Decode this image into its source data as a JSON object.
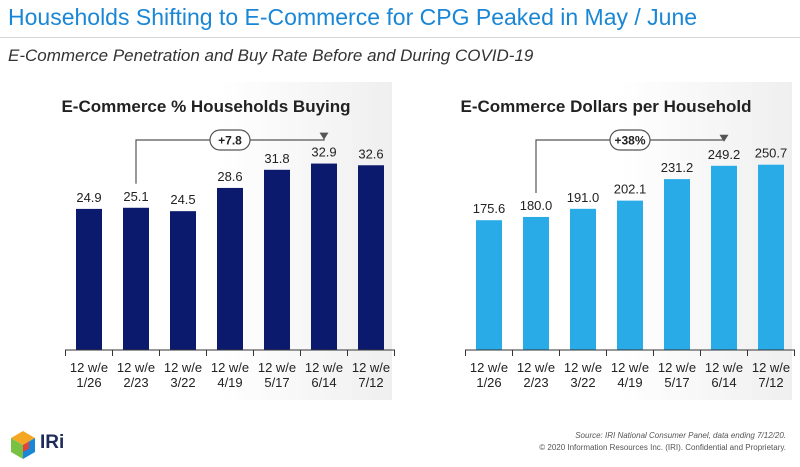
{
  "header": {
    "title": "Households Shifting to E-Commerce for CPG Peaked in May / June",
    "subtitle": "E-Commerce Penetration and Buy Rate Before and During COVID-19"
  },
  "chart_data": [
    {
      "type": "bar",
      "title": "E-Commerce % Households Buying",
      "categories": [
        "12 w/e 1/26",
        "12 w/e 2/23",
        "12 w/e 3/22",
        "12 w/e 4/19",
        "12 w/e 5/17",
        "12 w/e 6/14",
        "12 w/e 7/12"
      ],
      "category_lines": [
        [
          "12 w/e",
          "1/26"
        ],
        [
          "12 w/e",
          "2/23"
        ],
        [
          "12 w/e",
          "3/22"
        ],
        [
          "12 w/e",
          "4/19"
        ],
        [
          "12 w/e",
          "5/17"
        ],
        [
          "12 w/e",
          "6/14"
        ],
        [
          "12 w/e",
          "7/12"
        ]
      ],
      "values": [
        24.9,
        25.1,
        24.5,
        28.6,
        31.8,
        32.9,
        32.6
      ],
      "value_labels": [
        "24.9",
        "25.1",
        "24.5",
        "28.6",
        "31.8",
        "32.9",
        "32.6"
      ],
      "color": "#0c1a6e",
      "annotation": {
        "label": "+7.8",
        "from_category": "12 w/e 2/23",
        "to_category": "12 w/e 6/14"
      },
      "ylim": [
        0,
        42
      ],
      "grid": false
    },
    {
      "type": "bar",
      "title": "E-Commerce Dollars per Household",
      "categories": [
        "12 w/e 1/26",
        "12 w/e 2/23",
        "12 w/e 3/22",
        "12 w/e 4/19",
        "12 w/e 5/17",
        "12 w/e 6/14",
        "12 w/e 7/12"
      ],
      "category_lines": [
        [
          "12 w/e",
          "1/26"
        ],
        [
          "12 w/e",
          "2/23"
        ],
        [
          "12 w/e",
          "3/22"
        ],
        [
          "12 w/e",
          "4/19"
        ],
        [
          "12 w/e",
          "5/17"
        ],
        [
          "12 w/e",
          "6/14"
        ],
        [
          "12 w/e",
          "7/12"
        ]
      ],
      "values": [
        175.6,
        180.0,
        191.0,
        202.1,
        231.2,
        249.2,
        250.7
      ],
      "value_labels": [
        "175.6",
        "180.0",
        "191.0",
        "202.1",
        "231.2",
        "249.2",
        "250.7"
      ],
      "color": "#29abe8",
      "annotation": {
        "label": "+38%",
        "from_category": "12 w/e 2/23",
        "to_category": "12 w/e 6/14"
      },
      "ylim": [
        0,
        322
      ],
      "grid": false
    }
  ],
  "footer": {
    "source": "Source: IRI National Consumer Panel, data ending 7/12/20.",
    "copyright": "© 2020 Information Resources Inc. (IRI). Confidential and Proprietary.",
    "logo": "IRi"
  }
}
